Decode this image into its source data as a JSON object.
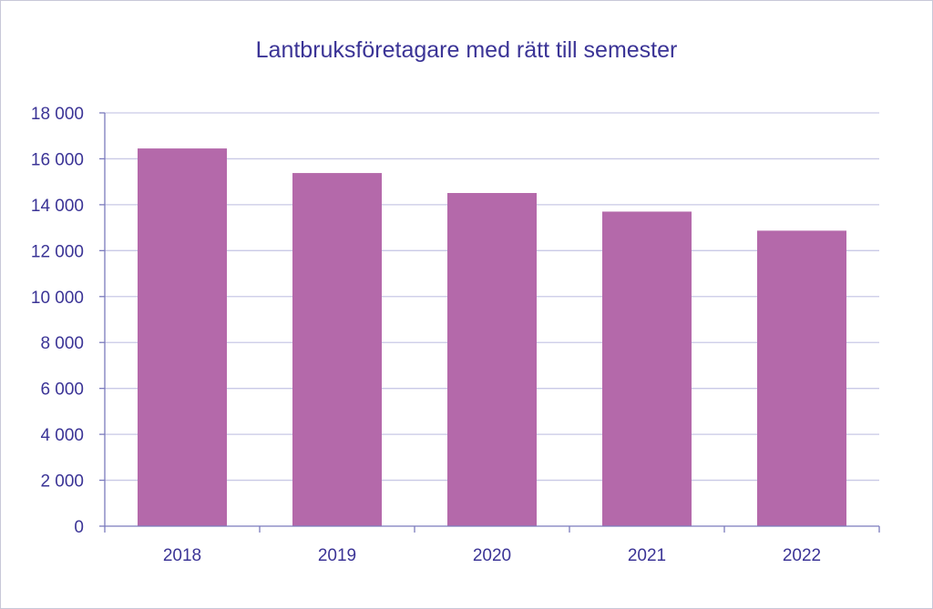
{
  "colors": {
    "bar": "#b469aa",
    "text": "#3b3496",
    "axis": "#7b7bbd",
    "grid": "#c9c9e6"
  },
  "chart_data": {
    "type": "bar",
    "title": "Lantbruksföretagare med rätt till semester",
    "xlabel": "",
    "ylabel": "",
    "categories": [
      "2018",
      "2019",
      "2020",
      "2021",
      "2022"
    ],
    "values": [
      16450,
      15380,
      14510,
      13700,
      12870
    ],
    "ylim": [
      0,
      18000
    ],
    "y_ticks": [
      0,
      2000,
      4000,
      6000,
      8000,
      10000,
      12000,
      14000,
      16000,
      18000
    ],
    "y_tick_labels": [
      "0",
      "2 000",
      "4 000",
      "6 000",
      "8 000",
      "10 000",
      "12 000",
      "14 000",
      "16 000",
      "18 000"
    ],
    "grid": true,
    "legend": "none"
  }
}
